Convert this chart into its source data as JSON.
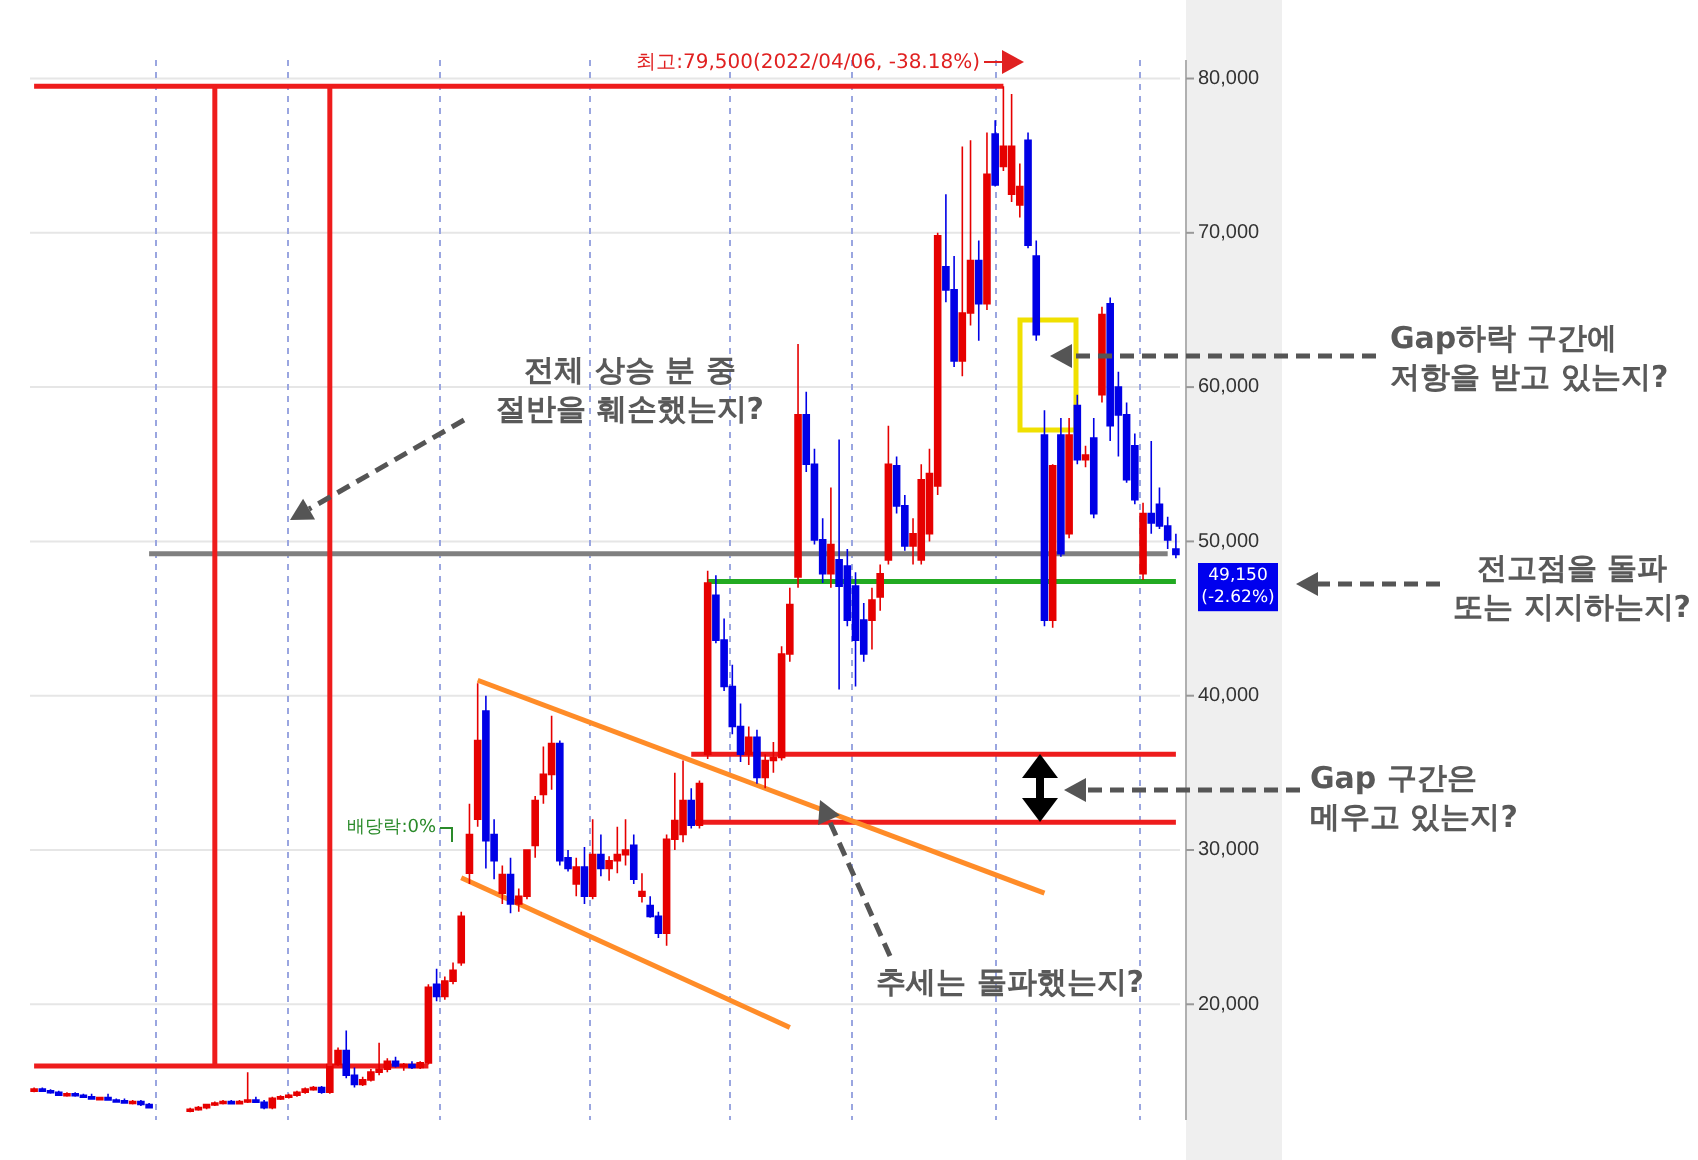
{
  "chart_data": {
    "type": "candlestick",
    "categories": [
      null,
      null,
      null,
      null,
      null,
      null,
      null,
      null,
      null,
      null,
      null,
      null,
      null,
      null,
      null,
      null,
      null,
      null,
      null,
      null,
      null,
      null,
      null,
      null,
      null,
      null,
      null,
      null,
      null,
      null,
      null,
      null,
      null,
      null,
      null,
      null,
      null,
      null,
      null,
      null,
      null,
      null,
      null,
      null,
      null,
      null,
      null,
      null,
      null,
      null,
      null,
      null,
      null,
      null,
      null,
      null,
      null,
      null,
      null,
      null,
      null,
      null,
      null,
      null,
      null,
      null,
      null,
      null,
      null,
      null,
      null,
      null,
      null,
      null,
      null,
      null,
      null,
      null,
      null,
      null,
      null,
      null,
      null,
      null,
      null,
      null,
      null,
      null,
      null,
      null,
      null,
      null,
      null,
      null,
      null,
      null,
      null,
      null,
      null,
      null,
      null,
      null,
      null,
      null,
      null,
      null,
      null,
      null,
      null,
      null,
      null,
      null,
      null,
      null,
      null,
      null,
      null,
      null,
      null,
      null,
      null,
      null,
      null,
      null,
      null,
      null,
      null,
      null,
      null,
      null,
      null,
      null,
      null,
      null,
      null,
      null,
      null,
      null,
      null,
      null
    ],
    "ohlc": [
      [
        14400,
        14600,
        14300,
        14500
      ],
      [
        14500,
        14600,
        14400,
        14400
      ],
      [
        14400,
        14500,
        14200,
        14300
      ],
      [
        14300,
        14400,
        14100,
        14100
      ],
      [
        14100,
        14300,
        14000,
        14200
      ],
      [
        14200,
        14300,
        14000,
        14100
      ],
      [
        14100,
        14200,
        14000,
        14000
      ],
      [
        14000,
        14200,
        13900,
        13900
      ],
      [
        13900,
        14000,
        13800,
        13950
      ],
      [
        13950,
        14200,
        13800,
        13800
      ],
      [
        13800,
        13900,
        13700,
        13750
      ],
      [
        13750,
        13900,
        13600,
        13600
      ],
      [
        13600,
        13800,
        13500,
        13700
      ],
      [
        13700,
        13800,
        13400,
        13500
      ],
      [
        13500,
        13600,
        13300,
        13300
      ],
      null,
      null,
      null,
      null,
      [
        13100,
        13300,
        13000,
        13200
      ],
      [
        13200,
        13400,
        13100,
        13300
      ],
      [
        13300,
        13500,
        13200,
        13500
      ],
      [
        13500,
        13700,
        13400,
        13600
      ],
      [
        13600,
        13800,
        13500,
        13700
      ],
      [
        13700,
        13800,
        13500,
        13550
      ],
      [
        13550,
        13800,
        13500,
        13700
      ],
      [
        13700,
        15600,
        13600,
        13800
      ],
      [
        13800,
        14000,
        13600,
        13650
      ],
      [
        13650,
        13800,
        13200,
        13300
      ],
      [
        13300,
        14000,
        13200,
        13900
      ],
      [
        13900,
        14100,
        13800,
        14000
      ],
      [
        14000,
        14200,
        13900,
        14100
      ],
      [
        14100,
        14400,
        14000,
        14300
      ],
      [
        14300,
        14600,
        14200,
        14500
      ],
      [
        14500,
        14700,
        14400,
        14600
      ],
      [
        14600,
        14700,
        14200,
        14300
      ],
      [
        14300,
        16200,
        14200,
        16100
      ],
      [
        16100,
        17200,
        16000,
        17000
      ],
      [
        17000,
        18300,
        15200,
        15400
      ],
      [
        15400,
        15900,
        14600,
        14800
      ],
      [
        14800,
        15300,
        14700,
        15100
      ],
      [
        15100,
        15800,
        15000,
        15600
      ],
      [
        15600,
        17500,
        15400,
        15800
      ],
      [
        15800,
        16500,
        15600,
        16300
      ],
      [
        16300,
        16600,
        15900,
        16000
      ],
      [
        16000,
        16200,
        15700,
        16100
      ],
      [
        16100,
        16300,
        15800,
        15900
      ],
      [
        15900,
        16300,
        15800,
        16200
      ],
      [
        16200,
        21300,
        16100,
        21100
      ],
      [
        21300,
        22300,
        20200,
        20500
      ],
      [
        20500,
        21800,
        20300,
        21500
      ],
      [
        21500,
        22700,
        21300,
        22200
      ],
      [
        22700,
        26000,
        22500,
        25700
      ],
      [
        28500,
        33000,
        27800,
        31000
      ],
      [
        32000,
        40800,
        31500,
        37100
      ],
      [
        39000,
        40000,
        28800,
        30600
      ],
      [
        31000,
        32000,
        28100,
        29300
      ],
      [
        27200,
        29000,
        26500,
        28400
      ],
      [
        28400,
        29500,
        25900,
        26500
      ],
      [
        26500,
        27500,
        26000,
        27000
      ],
      [
        27000,
        30000,
        26800,
        30000
      ],
      [
        30300,
        33500,
        29500,
        33200
      ],
      [
        33600,
        36700,
        33000,
        34900
      ],
      [
        34900,
        38700,
        33900,
        36900
      ],
      [
        36900,
        37100,
        29000,
        29300
      ],
      [
        29500,
        30000,
        28600,
        28800
      ],
      [
        27800,
        29500,
        27000,
        28900
      ],
      [
        28900,
        30200,
        26500,
        27000
      ],
      [
        27000,
        32000,
        26800,
        29700
      ],
      [
        29700,
        31000,
        28300,
        28800
      ],
      [
        28800,
        29600,
        28000,
        29300
      ],
      [
        29300,
        31500,
        28500,
        29700
      ],
      [
        29700,
        32000,
        29000,
        30000
      ],
      [
        30300,
        31000,
        27800,
        28100
      ],
      [
        27000,
        28500,
        26600,
        27300
      ],
      [
        26400,
        27000,
        25600,
        25700
      ],
      [
        25700,
        26000,
        24300,
        24600
      ],
      [
        24600,
        31000,
        23800,
        30700
      ],
      [
        30700,
        35000,
        30000,
        31900
      ],
      [
        31000,
        35800,
        30500,
        33200
      ],
      [
        33200,
        34000,
        31400,
        31600
      ],
      [
        31600,
        34500,
        31400,
        34300
      ],
      [
        36200,
        48100,
        35900,
        47300
      ],
      [
        46500,
        47800,
        43400,
        43600
      ],
      [
        43600,
        45000,
        40300,
        40600
      ],
      [
        40600,
        42000,
        37500,
        38000
      ],
      [
        38000,
        39500,
        35700,
        36200
      ],
      [
        36200,
        38000,
        35500,
        37300
      ],
      [
        37300,
        37800,
        34300,
        34700
      ],
      [
        34700,
        36200,
        34000,
        35800
      ],
      [
        35800,
        37000,
        35000,
        36000
      ],
      [
        36000,
        43200,
        35800,
        42700
      ],
      [
        42700,
        47000,
        42200,
        45900
      ],
      [
        47700,
        62800,
        47000,
        58200
      ],
      [
        58200,
        59700,
        54500,
        55000
      ],
      [
        55000,
        56000,
        49800,
        50100
      ],
      [
        50100,
        51500,
        47300,
        47900
      ],
      [
        47900,
        53500,
        47000,
        49800
      ],
      [
        48800,
        56600,
        40400,
        47100
      ],
      [
        48400,
        49500,
        44500,
        44900
      ],
      [
        47100,
        48000,
        40600,
        43600
      ],
      [
        44900,
        46000,
        42200,
        42700
      ],
      [
        44900,
        47000,
        43000,
        46200
      ],
      [
        46400,
        48500,
        45500,
        47900
      ],
      [
        48800,
        57500,
        48500,
        55000
      ],
      [
        54900,
        55500,
        51800,
        52300
      ],
      [
        52300,
        53000,
        49400,
        49700
      ],
      [
        49700,
        51500,
        48500,
        50500
      ],
      [
        48800,
        55000,
        48500,
        54000
      ],
      [
        50500,
        56000,
        50000,
        54400
      ],
      [
        53600,
        70000,
        53000,
        69800
      ],
      [
        67800,
        72500,
        65500,
        66300
      ],
      [
        66300,
        68500,
        61300,
        61700
      ],
      [
        61700,
        75600,
        60700,
        64800
      ],
      [
        64800,
        76000,
        64000,
        68200
      ],
      [
        68200,
        69500,
        63000,
        65400
      ],
      [
        65400,
        76500,
        65000,
        73800
      ],
      [
        76400,
        77300,
        73000,
        73100
      ],
      [
        74300,
        79500,
        74000,
        75600
      ],
      [
        72500,
        79000,
        72000,
        75600
      ],
      [
        71800,
        74500,
        71000,
        73000
      ],
      [
        76000,
        76500,
        69000,
        69200
      ],
      [
        68500,
        69500,
        63000,
        63400
      ],
      [
        56900,
        58500,
        44500,
        44900
      ],
      [
        44900,
        55000,
        44400,
        54900
      ],
      [
        56900,
        58000,
        49000,
        49200
      ],
      [
        50500,
        58000,
        50200,
        56900
      ],
      [
        58800,
        59500,
        55000,
        55300
      ],
      [
        55300,
        56200,
        54800,
        55600
      ],
      [
        56700,
        58000,
        51500,
        51800
      ],
      [
        59500,
        65200,
        59000,
        64700
      ],
      [
        65400,
        65800,
        56500,
        57500
      ],
      [
        60000,
        61000,
        55500,
        58200
      ],
      [
        58200,
        59000,
        53800,
        54000
      ],
      [
        56200,
        57000,
        52400,
        52700
      ],
      [
        47900,
        52500,
        47500,
        51800
      ],
      [
        51800,
        56500,
        50500,
        51200
      ],
      [
        52400,
        53500,
        50800,
        51000
      ],
      [
        51000,
        51600,
        49500,
        50100
      ],
      [
        49500,
        50500,
        48900,
        49150
      ]
    ],
    "series": [
      {
        "type": "line",
        "color": "#ee1c1c",
        "values": [
          79500,
          null,
          null,
          null,
          null,
          null,
          null,
          null,
          null,
          null,
          null,
          null,
          null,
          null,
          null,
          null,
          null,
          null,
          null,
          null,
          null,
          null,
          null,
          null,
          null,
          null,
          null,
          null,
          null,
          null,
          null,
          null,
          null,
          null,
          null,
          null,
          null,
          null,
          null,
          null,
          null,
          null,
          null,
          null,
          null,
          null,
          null,
          null,
          null,
          null,
          null,
          null,
          null,
          null,
          null,
          null,
          null,
          null,
          null,
          null,
          null,
          null,
          null,
          null,
          null,
          null,
          null,
          null,
          null,
          null,
          null,
          null,
          null,
          null,
          null,
          null,
          null,
          null,
          null,
          null,
          null,
          null,
          null,
          null,
          null,
          null,
          null,
          null,
          null,
          null,
          null,
          null,
          null,
          null,
          null,
          null,
          null,
          null,
          null,
          null,
          null,
          null,
          null,
          null,
          null,
          null,
          null,
          null,
          null,
          null,
          null,
          null,
          null,
          null,
          null,
          null,
          null,
          null,
          79500,
          null,
          null,
          null,
          null,
          null,
          null,
          null,
          null,
          null,
          null,
          null,
          null,
          null,
          null,
          null,
          null,
          null,
          null,
          null,
          null,
          null
        ]
      },
      {
        "type": "line",
        "color": "#ee1c1c",
        "values": [
          16000,
          null,
          null,
          null,
          null,
          null,
          null,
          null,
          null,
          null,
          null,
          null,
          null,
          null,
          null,
          null,
          null,
          null,
          null,
          null,
          null,
          null,
          null,
          null,
          null,
          null,
          null,
          null,
          null,
          null,
          null,
          null,
          null,
          null,
          null,
          null,
          null,
          null,
          null,
          null,
          null,
          null,
          null,
          null,
          null,
          null,
          null,
          null,
          16000,
          null,
          null,
          null,
          null,
          null,
          null,
          null,
          null,
          null,
          null,
          null,
          null,
          null,
          null,
          null,
          null,
          null,
          null,
          null,
          null,
          null,
          null,
          null,
          null,
          null,
          null,
          null,
          null,
          null,
          null,
          null,
          null,
          null,
          null,
          null,
          null,
          null,
          null,
          null,
          null,
          null,
          null,
          null,
          null,
          null,
          null,
          null,
          null,
          null,
          null,
          null,
          null,
          null,
          null,
          null,
          null,
          null,
          null,
          null,
          null,
          null,
          null,
          null,
          null,
          null,
          null,
          null,
          null,
          null,
          null,
          null,
          null,
          null,
          null,
          null,
          null,
          null,
          null,
          null,
          null,
          null,
          null,
          null,
          null,
          null,
          null,
          null,
          null,
          null,
          null,
          null
        ]
      },
      {
        "type": "line",
        "color": "#808080",
        "values": [
          null,
          null,
          null,
          null,
          null,
          null,
          null,
          null,
          null,
          null,
          null,
          null,
          null,
          null,
          49200,
          null,
          null,
          null,
          null,
          null,
          null,
          null,
          null,
          null,
          null,
          null,
          null,
          null,
          null,
          null,
          null,
          null,
          null,
          null,
          null,
          null,
          null,
          null,
          null,
          null,
          null,
          null,
          null,
          null,
          null,
          null,
          null,
          null,
          null,
          null,
          null,
          null,
          null,
          null,
          null,
          null,
          null,
          null,
          null,
          null,
          null,
          null,
          null,
          null,
          null,
          null,
          null,
          null,
          null,
          null,
          null,
          null,
          null,
          null,
          null,
          null,
          null,
          null,
          null,
          null,
          null,
          null,
          null,
          null,
          null,
          null,
          null,
          null,
          null,
          null,
          null,
          null,
          null,
          null,
          null,
          null,
          null,
          null,
          null,
          null,
          null,
          null,
          null,
          null,
          null,
          null,
          null,
          null,
          null,
          null,
          null,
          null,
          null,
          null,
          null,
          null,
          null,
          null,
          null,
          null,
          null,
          null,
          null,
          null,
          null,
          null,
          null,
          null,
          null,
          null,
          null,
          null,
          null,
          null,
          null,
          null,
          null,
          null,
          49200,
          null
        ]
      },
      {
        "type": "line",
        "color": "#22aa22",
        "values": [
          null,
          null,
          null,
          null,
          null,
          null,
          null,
          null,
          null,
          null,
          null,
          null,
          null,
          null,
          null,
          null,
          null,
          null,
          null,
          null,
          null,
          null,
          null,
          null,
          null,
          null,
          null,
          null,
          null,
          null,
          null,
          null,
          null,
          null,
          null,
          null,
          null,
          null,
          null,
          null,
          null,
          null,
          null,
          null,
          null,
          null,
          null,
          null,
          null,
          null,
          null,
          null,
          null,
          null,
          null,
          null,
          null,
          null,
          null,
          null,
          null,
          null,
          null,
          null,
          null,
          null,
          null,
          null,
          null,
          null,
          null,
          null,
          null,
          null,
          null,
          null,
          null,
          null,
          null,
          null,
          null,
          null,
          47400,
          null,
          null,
          null,
          null,
          null,
          null,
          null,
          null,
          null,
          null,
          null,
          null,
          null,
          null,
          null,
          null,
          null,
          null,
          null,
          null,
          null,
          null,
          null,
          null,
          null,
          null,
          null,
          null,
          null,
          null,
          null,
          null,
          null,
          null,
          null,
          null,
          null,
          null,
          null,
          null,
          null,
          null,
          null,
          null,
          null,
          null,
          null,
          null,
          null,
          null,
          null,
          null,
          null,
          null,
          null,
          null,
          47400
        ]
      },
      {
        "type": "line",
        "color": "#ee1c1c",
        "values": [
          null,
          null,
          null,
          null,
          null,
          null,
          null,
          null,
          null,
          null,
          null,
          null,
          null,
          null,
          null,
          null,
          null,
          null,
          null,
          null,
          null,
          null,
          null,
          null,
          null,
          null,
          null,
          null,
          null,
          null,
          null,
          null,
          null,
          null,
          null,
          null,
          null,
          null,
          null,
          null,
          null,
          null,
          null,
          null,
          null,
          null,
          null,
          null,
          null,
          null,
          null,
          null,
          null,
          null,
          null,
          null,
          null,
          null,
          null,
          null,
          null,
          null,
          null,
          null,
          null,
          null,
          null,
          null,
          null,
          null,
          null,
          null,
          null,
          null,
          null,
          null,
          null,
          null,
          null,
          null,
          36200,
          null,
          null,
          null,
          null,
          null,
          null,
          null,
          null,
          null,
          null,
          null,
          null,
          null,
          null,
          null,
          null,
          null,
          null,
          null,
          null,
          null,
          null,
          null,
          null,
          null,
          null,
          null,
          null,
          null,
          null,
          null,
          null,
          null,
          null,
          null,
          null,
          null,
          null,
          null,
          null,
          null,
          null,
          null,
          null,
          null,
          null,
          null,
          null,
          null,
          null,
          null,
          null,
          null,
          null,
          null,
          null,
          null,
          null,
          36200
        ]
      },
      {
        "type": "line",
        "color": "#ee1c1c",
        "values": [
          null,
          null,
          null,
          null,
          null,
          null,
          null,
          null,
          null,
          null,
          null,
          null,
          null,
          null,
          null,
          null,
          null,
          null,
          null,
          null,
          null,
          null,
          null,
          null,
          null,
          null,
          null,
          null,
          null,
          null,
          null,
          null,
          null,
          null,
          null,
          null,
          null,
          null,
          null,
          null,
          null,
          null,
          null,
          null,
          null,
          null,
          null,
          null,
          null,
          null,
          null,
          null,
          null,
          null,
          null,
          null,
          null,
          null,
          null,
          null,
          null,
          null,
          null,
          null,
          null,
          null,
          null,
          null,
          null,
          null,
          null,
          null,
          null,
          null,
          null,
          null,
          null,
          null,
          null,
          null,
          31800,
          null,
          null,
          null,
          null,
          null,
          null,
          null,
          null,
          null,
          null,
          null,
          null,
          null,
          null,
          null,
          null,
          null,
          null,
          null,
          null,
          null,
          null,
          null,
          null,
          null,
          null,
          null,
          null,
          null,
          null,
          null,
          null,
          null,
          null,
          null,
          null,
          null,
          null,
          null,
          null,
          null,
          null,
          null,
          null,
          null,
          null,
          null,
          null,
          null,
          null,
          null,
          null,
          null,
          null,
          null,
          null,
          null,
          null,
          31800
        ]
      },
      {
        "type": "line",
        "color": "#ff8c28",
        "values": [
          null,
          null,
          null,
          null,
          null,
          null,
          null,
          null,
          null,
          null,
          null,
          null,
          null,
          null,
          null,
          null,
          null,
          null,
          null,
          null,
          null,
          null,
          null,
          null,
          null,
          null,
          null,
          null,
          null,
          null,
          null,
          null,
          null,
          null,
          null,
          null,
          null,
          null,
          null,
          null,
          null,
          null,
          null,
          null,
          null,
          null,
          null,
          null,
          null,
          null,
          null,
          null,
          null,
          null,
          41000,
          null,
          null,
          null,
          null,
          null,
          null,
          null,
          null,
          null,
          null,
          null,
          null,
          null,
          null,
          null,
          null,
          null,
          null,
          null,
          null,
          null,
          null,
          null,
          null,
          null,
          null,
          null,
          null,
          null,
          null,
          null,
          null,
          null,
          null,
          null,
          null,
          null,
          null,
          null,
          null,
          null,
          null,
          null,
          null,
          null,
          null,
          null,
          null,
          null,
          null,
          null,
          null,
          null,
          null,
          null,
          null,
          null,
          null,
          null,
          null,
          null,
          null,
          null,
          null,
          null,
          null,
          null,
          null,
          27200,
          null,
          null,
          null,
          null,
          null,
          null,
          null,
          null,
          null,
          null,
          null,
          null,
          null,
          null,
          null,
          null
        ]
      },
      {
        "type": "line",
        "color": "#ff8c28",
        "values": [
          null,
          null,
          null,
          null,
          null,
          null,
          null,
          null,
          null,
          null,
          null,
          null,
          null,
          null,
          null,
          null,
          null,
          null,
          null,
          null,
          null,
          null,
          null,
          null,
          null,
          null,
          null,
          null,
          null,
          null,
          null,
          null,
          null,
          null,
          null,
          null,
          null,
          null,
          null,
          null,
          null,
          null,
          null,
          null,
          null,
          null,
          null,
          null,
          null,
          null,
          null,
          null,
          28200,
          null,
          null,
          null,
          null,
          null,
          null,
          null,
          null,
          null,
          null,
          null,
          null,
          null,
          null,
          null,
          null,
          null,
          null,
          null,
          null,
          null,
          null,
          null,
          null,
          null,
          null,
          null,
          null,
          null,
          null,
          null,
          null,
          null,
          null,
          null,
          null,
          null,
          null,
          null,
          18500,
          null,
          null,
          null,
          null,
          null,
          null,
          null,
          null,
          null,
          null,
          null,
          null,
          null,
          null,
          null,
          null,
          null,
          null,
          null,
          null,
          null,
          null,
          null,
          null,
          null,
          null,
          null,
          null,
          null,
          null,
          null,
          null,
          null,
          null,
          null,
          null,
          null,
          null,
          null,
          null,
          null,
          null,
          null,
          null,
          null,
          null,
          null
        ]
      }
    ],
    "ylim": [
      12500,
      81200
    ],
    "yticks": [
      {
        "value": 20000,
        "label": "20,000"
      },
      {
        "value": 30000,
        "label": "30,000"
      },
      {
        "value": 40000,
        "label": "40,000"
      },
      {
        "value": 50000,
        "label": "50,000"
      },
      {
        "value": 60000,
        "label": "60,000"
      },
      {
        "value": 70000,
        "label": "70,000"
      },
      {
        "value": 80000,
        "label": "80,000"
      }
    ],
    "grid": "y",
    "tick_labels": "y",
    "annotations": [
      "최고:79,500(2022/04/06, -38.18%)",
      "전체 상승 분 중\n절반을 훼손했는지?",
      "Gap하락 구간에\n저항을 받고 있는지?",
      "전고점을 돌파\n또는 지지하는지?",
      "Gap 구간은\n메우고 있는지?",
      "추세는 돌파했는지?",
      "배당락:0%",
      "49,150\n(-2.62%)"
    ]
  }
}
